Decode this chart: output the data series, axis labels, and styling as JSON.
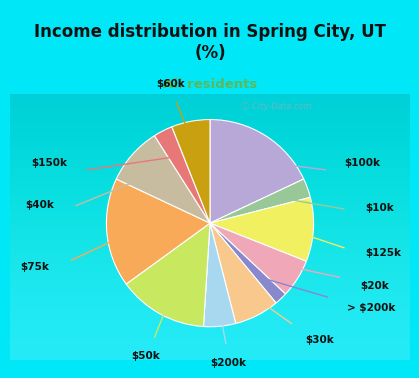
{
  "title": "Income distribution in Spring City, UT\n(%)",
  "subtitle": "All residents",
  "title_color": "#111111",
  "subtitle_color": "#5cb85c",
  "background_color": "#00e8f8",
  "chart_bg_gradient_top": "#e8f5f0",
  "chart_bg_gradient_bottom": "#d0eee8",
  "watermark": "ⓘ City-Data.com",
  "labels": [
    "$100k",
    "$10k",
    "$125k",
    "$20k",
    "> $200k",
    "$30k",
    "$200k",
    "$50k",
    "$75k",
    "$40k",
    "$150k",
    "$60k"
  ],
  "values": [
    18,
    3,
    10,
    6,
    2,
    7,
    5,
    14,
    17,
    9,
    3,
    6
  ],
  "colors": [
    "#b8a8d8",
    "#98c898",
    "#f0f060",
    "#f0a8b8",
    "#8888cc",
    "#f8c88c",
    "#a8d8f0",
    "#c8e860",
    "#f8aa58",
    "#c8bca0",
    "#e87878",
    "#c8a010"
  ],
  "startangle": 90,
  "label_fontsize": 7.5
}
